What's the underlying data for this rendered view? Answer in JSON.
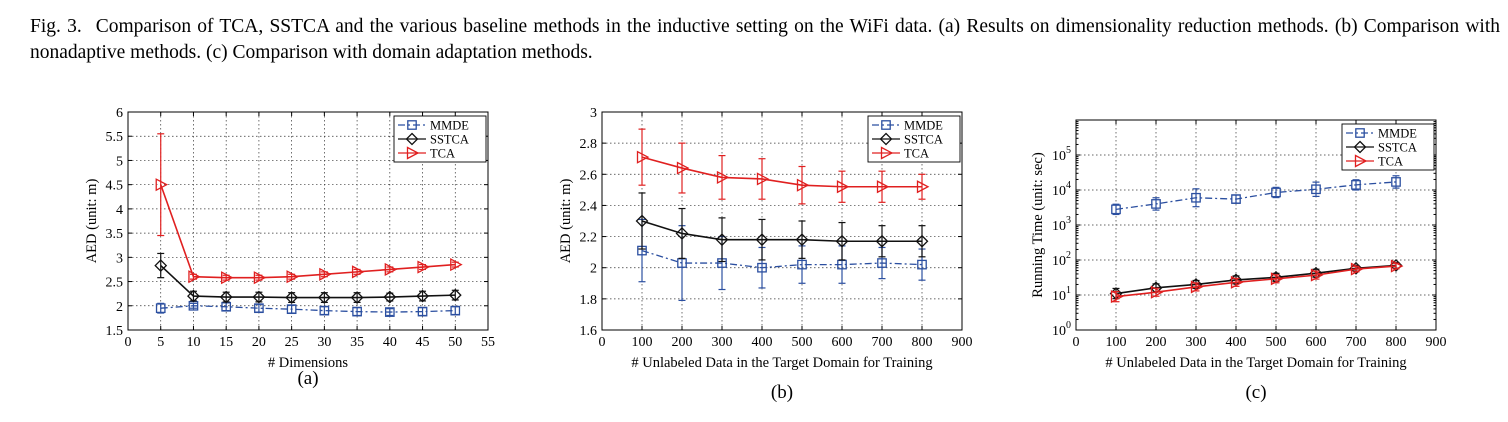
{
  "caption": {
    "fig": "Fig. 3.",
    "text": "Comparison of TCA, SSTCA and the various baseline methods in the inductive setting on the WiFi data. (a) Results on dimensionality reduction methods. (b) Comparison with nonadaptive methods. (c) Comparison with domain adaptation methods."
  },
  "colors": {
    "MMDE": "#2b4fa0",
    "SSTCA": "#111111",
    "TCA": "#e02020"
  },
  "chart_data": [
    {
      "type": "line",
      "panel": "(a)",
      "xlabel": "# Dimensions",
      "ylabel": "AED (unit: m)",
      "xlim": [
        0,
        55
      ],
      "ylim": [
        1.5,
        6
      ],
      "xticks": [
        0,
        5,
        10,
        15,
        20,
        25,
        30,
        35,
        40,
        45,
        50,
        55
      ],
      "yticks": [
        1.5,
        2,
        2.5,
        3,
        3.5,
        4,
        4.5,
        5,
        5.5,
        6
      ],
      "yscale": "linear",
      "grid": true,
      "legend": "top-right",
      "x": [
        5,
        10,
        15,
        20,
        25,
        30,
        35,
        40,
        45,
        50
      ],
      "series": [
        {
          "name": "MMDE",
          "marker": "square",
          "dash": "dashdot",
          "values": [
            1.95,
            2.0,
            1.98,
            1.95,
            1.93,
            1.9,
            1.88,
            1.87,
            1.88,
            1.9
          ],
          "err": [
            0.1,
            0.05,
            0.08,
            0.08,
            0.08,
            0.08,
            0.08,
            0.07,
            0.08,
            0.08
          ]
        },
        {
          "name": "SSTCA",
          "marker": "diamond",
          "dash": "solid",
          "values": [
            2.83,
            2.2,
            2.18,
            2.18,
            2.17,
            2.17,
            2.17,
            2.18,
            2.2,
            2.22
          ],
          "err": [
            0.25,
            0.1,
            0.1,
            0.1,
            0.1,
            0.1,
            0.1,
            0.08,
            0.1,
            0.1
          ]
        },
        {
          "name": "TCA",
          "marker": "triangle-right",
          "dash": "solid",
          "values": [
            4.5,
            2.6,
            2.58,
            2.58,
            2.6,
            2.65,
            2.7,
            2.75,
            2.8,
            2.85
          ],
          "err": [
            1.05,
            0.05,
            0.05,
            0.05,
            0.05,
            0.05,
            0.05,
            0.05,
            0.05,
            0.05
          ]
        }
      ]
    },
    {
      "type": "line",
      "panel": "(b)",
      "xlabel": "# Unlabeled Data in the Target Domain for Training",
      "ylabel": "AED (unit: m)",
      "xlim": [
        0,
        900
      ],
      "ylim": [
        1.6,
        3
      ],
      "xticks": [
        0,
        100,
        200,
        300,
        400,
        500,
        600,
        700,
        800,
        900
      ],
      "yticks": [
        1.6,
        1.8,
        2,
        2.2,
        2.4,
        2.6,
        2.8,
        3
      ],
      "yscale": "linear",
      "grid": true,
      "legend": "top-right",
      "x": [
        100,
        200,
        300,
        400,
        500,
        600,
        700,
        800
      ],
      "series": [
        {
          "name": "MMDE",
          "marker": "square",
          "dash": "dashdot",
          "values": [
            2.11,
            2.03,
            2.03,
            2.0,
            2.02,
            2.02,
            2.03,
            2.02
          ],
          "err": [
            0.2,
            0.24,
            0.17,
            0.13,
            0.12,
            0.12,
            0.1,
            0.1
          ]
        },
        {
          "name": "SSTCA",
          "marker": "diamond",
          "dash": "solid",
          "values": [
            2.3,
            2.22,
            2.18,
            2.18,
            2.18,
            2.17,
            2.17,
            2.17
          ],
          "err": [
            0.18,
            0.16,
            0.14,
            0.13,
            0.12,
            0.12,
            0.1,
            0.1
          ]
        },
        {
          "name": "TCA",
          "marker": "triangle-right",
          "dash": "solid",
          "values": [
            2.71,
            2.64,
            2.58,
            2.57,
            2.53,
            2.52,
            2.52,
            2.52
          ],
          "err": [
            0.18,
            0.16,
            0.14,
            0.13,
            0.12,
            0.1,
            0.1,
            0.08
          ]
        }
      ]
    },
    {
      "type": "line",
      "panel": "(c)",
      "xlabel": "# Unlabeled Data in the Target Domain for Training",
      "ylabel": "Running Time (unit: sec)",
      "xlim": [
        0,
        900
      ],
      "ylim": [
        1,
        1000000
      ],
      "xticks": [
        0,
        100,
        200,
        300,
        400,
        500,
        600,
        700,
        800,
        900
      ],
      "yticks": [
        1,
        10,
        100,
        1000,
        10000,
        100000
      ],
      "ytick_labels": [
        {
          "base": "10",
          "exp": "0"
        },
        {
          "base": "10",
          "exp": "1"
        },
        {
          "base": "10",
          "exp": "2"
        },
        {
          "base": "10",
          "exp": "3"
        },
        {
          "base": "10",
          "exp": "4"
        },
        {
          "base": "10",
          "exp": "5"
        }
      ],
      "yscale": "log",
      "grid": true,
      "legend": "top-right",
      "x": [
        100,
        200,
        300,
        400,
        500,
        600,
        700,
        800
      ],
      "series": [
        {
          "name": "MMDE",
          "marker": "square",
          "dash": "dashdot",
          "values": [
            2800,
            4000,
            6000,
            5500,
            8500,
            10500,
            14000,
            17000
          ],
          "errfactor": [
            1.4,
            1.5,
            1.8,
            1.3,
            1.4,
            1.6,
            1.4,
            1.5
          ]
        },
        {
          "name": "SSTCA",
          "marker": "diamond",
          "dash": "solid",
          "values": [
            11,
            16,
            20,
            27,
            32,
            42,
            58,
            70
          ],
          "errfactor": [
            1.4,
            1.3,
            1.3,
            1.3,
            1.3,
            1.3,
            1.2,
            1.2
          ]
        },
        {
          "name": "TCA",
          "marker": "triangle-right",
          "dash": "solid",
          "values": [
            9,
            12,
            17,
            23,
            29,
            37,
            55,
            67
          ],
          "errfactor": [
            1.4,
            1.3,
            1.3,
            1.3,
            1.3,
            1.3,
            1.2,
            1.2
          ]
        }
      ]
    }
  ]
}
